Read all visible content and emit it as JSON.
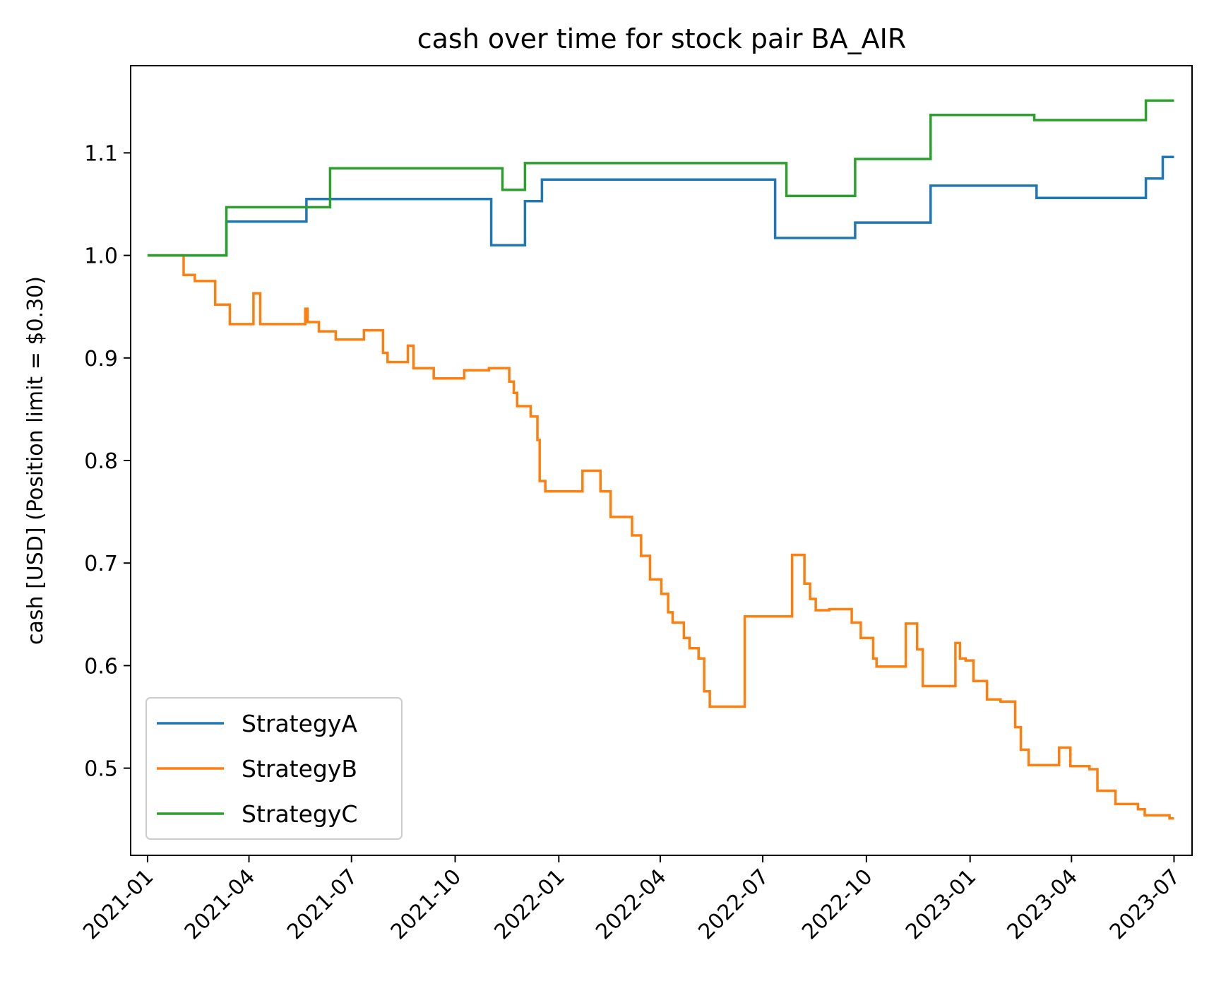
{
  "chart_data": {
    "type": "line",
    "title": "cash over time for stock pair BA_AIR",
    "xlabel": "",
    "ylabel": "cash [USD] (Position limit = $0.30)",
    "x_ticks": [
      "2021-01",
      "2021-04",
      "2021-07",
      "2021-10",
      "2022-01",
      "2022-04",
      "2022-07",
      "2022-10",
      "2023-01",
      "2023-04",
      "2023-07"
    ],
    "y_ticks": [
      "0.5",
      "0.6",
      "0.7",
      "0.8",
      "0.9",
      "1.0",
      "1.1"
    ],
    "xlim": [
      "2020-12-17",
      "2023-07-17"
    ],
    "ylim": [
      0.415,
      1.185
    ],
    "grid": false,
    "legend_position": "lower-left",
    "drawstyle": "steps-post",
    "series": [
      {
        "name": "StrategyA",
        "color": "#1f77b4",
        "points": [
          [
            "2021-01-01",
            1.0
          ],
          [
            "2021-03-12",
            1.033
          ],
          [
            "2021-05-22",
            1.055
          ],
          [
            "2021-11-02",
            1.01
          ],
          [
            "2021-12-02",
            1.053
          ],
          [
            "2021-12-17",
            1.074
          ],
          [
            "2022-07-12",
            1.017
          ],
          [
            "2022-09-21",
            1.032
          ],
          [
            "2022-11-27",
            1.068
          ],
          [
            "2023-03-01",
            1.056
          ],
          [
            "2023-06-06",
            1.075
          ],
          [
            "2023-06-21",
            1.096
          ],
          [
            "2023-07-01",
            1.096
          ]
        ]
      },
      {
        "name": "StrategyB",
        "color": "#ff7f0e",
        "points": [
          [
            "2021-01-01",
            1.0
          ],
          [
            "2021-02-02",
            0.981
          ],
          [
            "2021-02-12",
            0.975
          ],
          [
            "2021-03-02",
            0.952
          ],
          [
            "2021-03-15",
            0.933
          ],
          [
            "2021-04-05",
            0.963
          ],
          [
            "2021-04-11",
            0.933
          ],
          [
            "2021-05-21",
            0.948
          ],
          [
            "2021-05-23",
            0.935
          ],
          [
            "2021-06-02",
            0.926
          ],
          [
            "2021-06-17",
            0.918
          ],
          [
            "2021-07-12",
            0.927
          ],
          [
            "2021-07-29",
            0.905
          ],
          [
            "2021-08-02",
            0.896
          ],
          [
            "2021-08-20",
            0.912
          ],
          [
            "2021-08-25",
            0.89
          ],
          [
            "2021-09-12",
            0.88
          ],
          [
            "2021-10-09",
            0.888
          ],
          [
            "2021-10-31",
            0.89
          ],
          [
            "2021-11-18",
            0.877
          ],
          [
            "2021-11-22",
            0.866
          ],
          [
            "2021-11-25",
            0.853
          ],
          [
            "2021-12-07",
            0.843
          ],
          [
            "2021-12-13",
            0.82
          ],
          [
            "2021-12-15",
            0.78
          ],
          [
            "2021-12-20",
            0.77
          ],
          [
            "2022-01-22",
            0.79
          ],
          [
            "2022-02-07",
            0.77
          ],
          [
            "2022-02-16",
            0.745
          ],
          [
            "2022-03-07",
            0.727
          ],
          [
            "2022-03-15",
            0.707
          ],
          [
            "2022-03-23",
            0.684
          ],
          [
            "2022-04-02",
            0.67
          ],
          [
            "2022-04-08",
            0.652
          ],
          [
            "2022-04-12",
            0.642
          ],
          [
            "2022-04-22",
            0.627
          ],
          [
            "2022-04-27",
            0.617
          ],
          [
            "2022-05-05",
            0.607
          ],
          [
            "2022-05-10",
            0.575
          ],
          [
            "2022-05-15",
            0.56
          ],
          [
            "2022-06-15",
            0.648
          ],
          [
            "2022-07-27",
            0.708
          ],
          [
            "2022-08-07",
            0.68
          ],
          [
            "2022-08-12",
            0.665
          ],
          [
            "2022-08-17",
            0.654
          ],
          [
            "2022-08-29",
            0.655
          ],
          [
            "2022-09-18",
            0.642
          ],
          [
            "2022-09-26",
            0.627
          ],
          [
            "2022-10-07",
            0.607
          ],
          [
            "2022-10-10",
            0.599
          ],
          [
            "2022-11-05",
            0.641
          ],
          [
            "2022-11-15",
            0.616
          ],
          [
            "2022-11-20",
            0.58
          ],
          [
            "2022-12-19",
            0.622
          ],
          [
            "2022-12-23",
            0.607
          ],
          [
            "2022-12-28",
            0.605
          ],
          [
            "2023-01-04",
            0.585
          ],
          [
            "2023-01-16",
            0.567
          ],
          [
            "2023-01-28",
            0.565
          ],
          [
            "2023-02-10",
            0.54
          ],
          [
            "2023-02-15",
            0.518
          ],
          [
            "2023-02-22",
            0.503
          ],
          [
            "2023-03-21",
            0.52
          ],
          [
            "2023-03-31",
            0.502
          ],
          [
            "2023-04-17",
            0.499
          ],
          [
            "2023-04-24",
            0.478
          ],
          [
            "2023-05-10",
            0.465
          ],
          [
            "2023-05-30",
            0.46
          ],
          [
            "2023-06-05",
            0.454
          ],
          [
            "2023-06-27",
            0.451
          ],
          [
            "2023-07-01",
            0.451
          ]
        ]
      },
      {
        "name": "StrategyC",
        "color": "#2ca02c",
        "points": [
          [
            "2021-01-01",
            1.0
          ],
          [
            "2021-03-12",
            1.047
          ],
          [
            "2021-06-12",
            1.085
          ],
          [
            "2021-11-12",
            1.064
          ],
          [
            "2021-12-02",
            1.09
          ],
          [
            "2022-07-22",
            1.058
          ],
          [
            "2022-09-21",
            1.094
          ],
          [
            "2022-11-27",
            1.137
          ],
          [
            "2023-02-27",
            1.132
          ],
          [
            "2023-06-06",
            1.151
          ],
          [
            "2023-07-01",
            1.151
          ]
        ]
      }
    ]
  }
}
